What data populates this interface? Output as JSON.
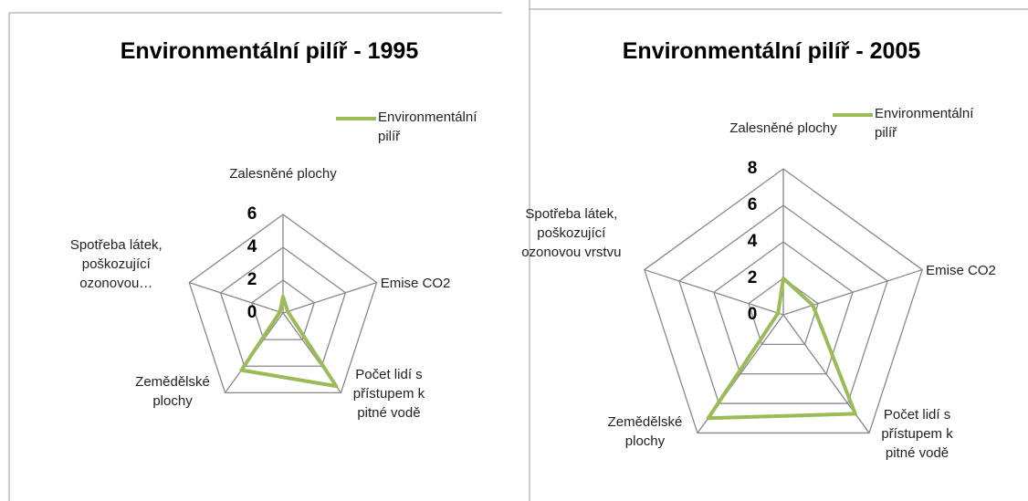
{
  "chart_data": [
    {
      "type": "radar",
      "title": "Environmentální pilíř - 1995",
      "categories": [
        "Zalesněné plochy",
        "Emise CO2",
        "Počet lidí s přístupem k pitné vodě",
        "Zemědělské plochy",
        "Spotřeba látek, poškozující ozonovou…"
      ],
      "series": [
        {
          "name": "Environmentální pilíř",
          "color": "#9bbb59",
          "values": [
            1,
            0.3,
            5.5,
            4.3,
            0.2
          ]
        }
      ],
      "ylim": [
        0,
        6
      ],
      "yticks": [
        0,
        2,
        4,
        6
      ],
      "grid": true,
      "legend": "top-right"
    },
    {
      "type": "radar",
      "title": "Environmentální pilíř - 2005",
      "categories": [
        "Zalesněné plochy",
        "Emise CO2",
        "Počet lidí s přístupem k pitné vodě",
        "Zemědělské plochy",
        "Spotřeba látek, poškozující ozonovou vrstvu"
      ],
      "series": [
        {
          "name": "Environmentální pilíř",
          "color": "#9bbb59",
          "values": [
            2,
            1.7,
            6.7,
            7,
            0.3
          ]
        }
      ],
      "ylim": [
        0,
        8
      ],
      "yticks": [
        0,
        2,
        4,
        6,
        8
      ],
      "grid": true,
      "legend": "top-right"
    }
  ]
}
